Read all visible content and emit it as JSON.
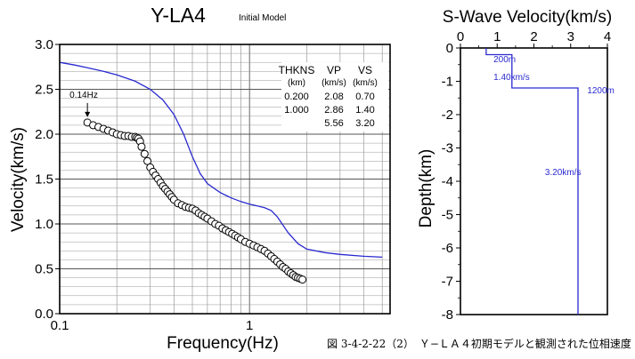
{
  "caption": "図 3-4-2-22（2）　Ｙ−ＬＡ４初期モデルと観測された位相速度",
  "chart_data": [
    {
      "type": "scatter",
      "title": "Y-LA4",
      "subtitle": "Initial Model",
      "xlabel": "Frequency(Hz)",
      "ylabel": "Velocity(km/s)",
      "xscale": "log",
      "xlim": [
        0.1,
        5.5
      ],
      "ylim": [
        0.0,
        3.0
      ],
      "x_tick_labels": [
        "0.1",
        "1"
      ],
      "x_ticks": [
        0.1,
        1
      ],
      "y_ticks": [
        0.0,
        0.5,
        1.0,
        1.5,
        2.0,
        2.5,
        3.0
      ],
      "y_tick_labels": [
        "0.0",
        "0.5",
        "1.0",
        "1.5",
        "2.0",
        "2.5",
        "3.0"
      ],
      "grid": true,
      "annotation": {
        "label": "0.14Hz",
        "x": 0.14,
        "y": 2.13
      },
      "model_table": {
        "headers": [
          [
            "THKNS",
            "VP",
            "VS"
          ],
          [
            "(km)",
            "(km/s)",
            "(km/s)"
          ]
        ],
        "rows": [
          [
            "0.200",
            "2.08",
            "0.70"
          ],
          [
            "1.000",
            "2.86",
            "1.40"
          ],
          [
            "",
            "5.56",
            "3.20"
          ]
        ]
      },
      "colors": {
        "theory_curve": "#2a2ad0",
        "observed": "#000000"
      },
      "series": [
        {
          "kind": "line",
          "x": [
            0.1,
            0.12,
            0.14,
            0.17,
            0.2,
            0.25,
            0.3,
            0.35,
            0.4,
            0.45,
            0.5,
            0.55,
            0.6,
            0.7,
            0.8,
            0.9,
            1.0,
            1.1,
            1.2,
            1.3,
            1.4,
            1.6,
            1.8,
            2.0,
            2.5,
            3.0,
            4.0,
            5.0
          ],
          "y": [
            2.8,
            2.77,
            2.74,
            2.7,
            2.66,
            2.59,
            2.5,
            2.38,
            2.22,
            2.0,
            1.75,
            1.56,
            1.45,
            1.35,
            1.29,
            1.25,
            1.22,
            1.2,
            1.18,
            1.15,
            1.08,
            0.9,
            0.78,
            0.72,
            0.68,
            0.66,
            0.64,
            0.63
          ]
        },
        {
          "kind": "scatter",
          "x": [
            0.14,
            0.15,
            0.16,
            0.17,
            0.18,
            0.19,
            0.2,
            0.21,
            0.22,
            0.23,
            0.24,
            0.25,
            0.255,
            0.26,
            0.265,
            0.27,
            0.28,
            0.29,
            0.3,
            0.31,
            0.32,
            0.33,
            0.34,
            0.35,
            0.36,
            0.37,
            0.38,
            0.39,
            0.4,
            0.42,
            0.44,
            0.46,
            0.48,
            0.5,
            0.52,
            0.54,
            0.56,
            0.58,
            0.6,
            0.63,
            0.66,
            0.69,
            0.72,
            0.75,
            0.78,
            0.81,
            0.84,
            0.87,
            0.9,
            0.95,
            1.0,
            1.05,
            1.1,
            1.15,
            1.2,
            1.25,
            1.3,
            1.35,
            1.4,
            1.45,
            1.5,
            1.55,
            1.6,
            1.65,
            1.7,
            1.75,
            1.8,
            1.85,
            1.9
          ],
          "y": [
            2.13,
            2.1,
            2.08,
            2.06,
            2.04,
            2.02,
            2.0,
            1.99,
            1.98,
            1.98,
            1.97,
            1.97,
            1.96,
            1.95,
            1.92,
            1.86,
            1.78,
            1.7,
            1.63,
            1.58,
            1.54,
            1.5,
            1.46,
            1.42,
            1.39,
            1.36,
            1.33,
            1.3,
            1.27,
            1.23,
            1.21,
            1.19,
            1.18,
            1.17,
            1.15,
            1.12,
            1.1,
            1.08,
            1.06,
            1.03,
            1.0,
            0.98,
            0.95,
            0.93,
            0.91,
            0.89,
            0.87,
            0.85,
            0.83,
            0.8,
            0.78,
            0.76,
            0.74,
            0.72,
            0.7,
            0.67,
            0.64,
            0.61,
            0.58,
            0.55,
            0.52,
            0.5,
            0.47,
            0.45,
            0.43,
            0.41,
            0.4,
            0.39,
            0.38
          ]
        }
      ]
    },
    {
      "type": "line",
      "title": "S-Wave Velocity(km/s)",
      "ylabel": "Depth(km)",
      "xlim": [
        0,
        4
      ],
      "ylim": [
        -8,
        0
      ],
      "x_ticks": [
        0,
        1,
        2,
        3,
        4
      ],
      "y_ticks": [
        0,
        -1,
        -2,
        -3,
        -4,
        -5,
        -6,
        -7,
        -8
      ],
      "x_tick_labels": [
        "0",
        "1",
        "2",
        "3",
        "4"
      ],
      "y_tick_labels": [
        "0",
        "-1",
        "-2",
        "-3",
        "-4",
        "-5",
        "-6",
        "-7",
        "-8"
      ],
      "grid": false,
      "line_color": "#2a2ad0",
      "profile": {
        "x": [
          0.7,
          0.7,
          1.4,
          1.4,
          3.2,
          3.2
        ],
        "y": [
          0,
          -0.2,
          -0.2,
          -1.2,
          -1.2,
          -8
        ]
      },
      "annotations": [
        {
          "label": "200m",
          "x": 0.9,
          "y": -0.32
        },
        {
          "label": "1.40km/s",
          "x": 0.9,
          "y": -0.85
        },
        {
          "label": "1200m",
          "x": 3.45,
          "y": -1.25
        },
        {
          "label": "3.20km/s",
          "x": 2.3,
          "y": -3.7
        }
      ]
    }
  ]
}
